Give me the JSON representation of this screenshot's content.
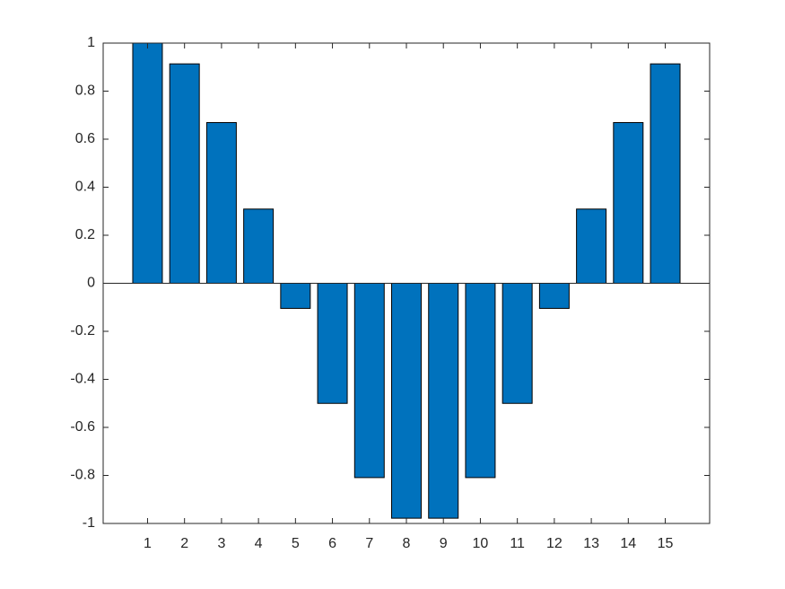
{
  "chart_data": {
    "type": "bar",
    "x": [
      1,
      2,
      3,
      4,
      5,
      6,
      7,
      8,
      9,
      10,
      11,
      12,
      13,
      14,
      15
    ],
    "values": [
      1,
      0.9135,
      0.6691,
      0.309,
      -0.1045,
      -0.5,
      -0.809,
      -0.9781,
      -0.9781,
      -0.809,
      -0.5,
      -0.1045,
      0.309,
      0.6691,
      0.9135
    ],
    "color": "#0072bd",
    "xlim": [
      -0.2,
      16.2
    ],
    "xticks": [
      1,
      2,
      3,
      4,
      5,
      6,
      7,
      8,
      9,
      10,
      11,
      12,
      13,
      14,
      15
    ],
    "ylim": [
      -1,
      1
    ],
    "yticks": [
      -1,
      -0.8,
      -0.6,
      -0.4,
      -0.2,
      0,
      0.2,
      0.4,
      0.6,
      0.8,
      1
    ],
    "grid": false
  }
}
